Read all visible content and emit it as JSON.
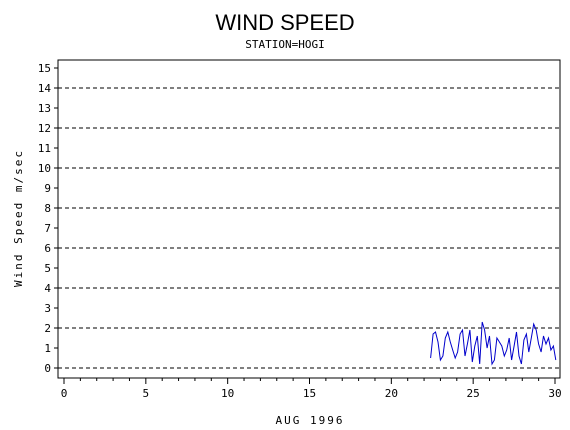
{
  "chart_data": {
    "type": "line",
    "title": "WIND SPEED",
    "subtitle": "STATION=HOGI",
    "xlabel": "AUG 1996",
    "ylabel": "Wind Speed m/sec",
    "xlim": [
      0,
      30
    ],
    "ylim": [
      0,
      15
    ],
    "x_ticks": [
      0,
      5,
      10,
      15,
      20,
      25,
      30
    ],
    "y_ticks": [
      0,
      1,
      2,
      3,
      4,
      5,
      6,
      7,
      8,
      9,
      10,
      11,
      12,
      13,
      14,
      15
    ],
    "reference_lines": [
      0,
      2,
      4,
      6,
      8,
      10,
      12,
      14
    ],
    "grid": false,
    "series_color": "#0000cc",
    "series": [
      {
        "x": [
          22.4,
          22.55,
          22.7,
          22.85,
          23.0,
          23.15,
          23.3,
          23.45,
          23.6,
          23.75,
          23.9,
          24.05,
          24.2,
          24.35,
          24.5,
          24.65,
          24.8,
          24.95,
          25.1,
          25.25,
          25.4,
          25.55,
          25.7,
          25.85,
          26.0,
          26.15,
          26.3,
          26.45,
          26.6,
          26.75,
          26.9,
          27.05,
          27.2,
          27.35,
          27.5,
          27.65,
          27.8,
          27.95,
          28.1,
          28.25,
          28.4,
          28.55,
          28.7,
          28.85,
          29.0,
          29.15,
          29.3,
          29.45,
          29.6,
          29.75,
          29.9,
          30.05
        ],
        "values": [
          0.5,
          1.7,
          1.8,
          1.3,
          0.4,
          0.6,
          1.5,
          1.8,
          1.3,
          0.9,
          0.5,
          0.8,
          1.7,
          1.9,
          0.6,
          1.2,
          1.9,
          0.3,
          1.1,
          1.6,
          0.2,
          2.3,
          1.9,
          1.0,
          1.6,
          0.2,
          0.4,
          1.5,
          1.3,
          1.1,
          0.6,
          0.9,
          1.5,
          0.4,
          1.1,
          1.8,
          0.6,
          0.2,
          1.4,
          1.7,
          0.8,
          1.5,
          2.2,
          1.9,
          1.2,
          0.8,
          1.6,
          1.2,
          1.5,
          0.9,
          1.1,
          0.4
        ]
      }
    ]
  }
}
